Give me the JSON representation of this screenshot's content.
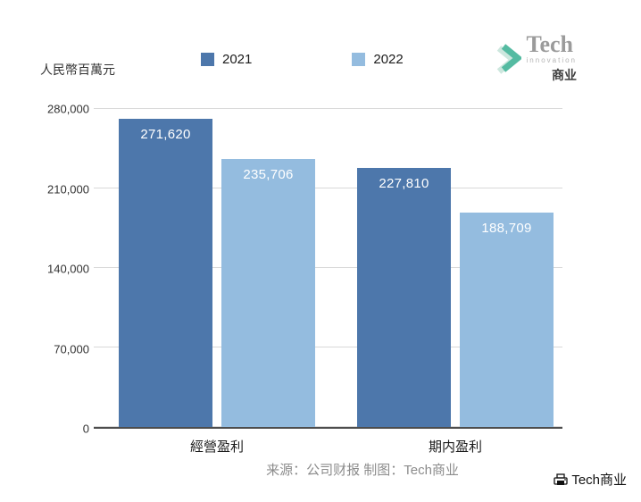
{
  "header": {
    "logo": {
      "line1": "Tech",
      "line2": "innovation",
      "line3": "商业"
    }
  },
  "chart_data": {
    "type": "bar",
    "categories": [
      "經營盈利",
      "期内盈利"
    ],
    "series": [
      {
        "name": "2021",
        "color": "#4d77ab",
        "values": [
          271620,
          227810
        ],
        "labels": [
          "271,620",
          "227,810"
        ]
      },
      {
        "name": "2022",
        "color": "#94bcdf",
        "values": [
          235706,
          188709
        ],
        "labels": [
          "235,706",
          "188,709"
        ]
      }
    ],
    "title": "",
    "xlabel": "",
    "ylabel": "人民幣百萬元",
    "ylim": [
      0,
      280000
    ],
    "yticks": [
      0,
      70000,
      140000,
      210000,
      280000
    ],
    "ytick_labels": [
      "0",
      "70,000",
      "140,000",
      "210,000",
      "280,000"
    ],
    "grid": true,
    "legend_position": "top"
  },
  "footer": {
    "source": "来源：公司财报 制图：Tech商业",
    "watermark": "Tech商业"
  }
}
